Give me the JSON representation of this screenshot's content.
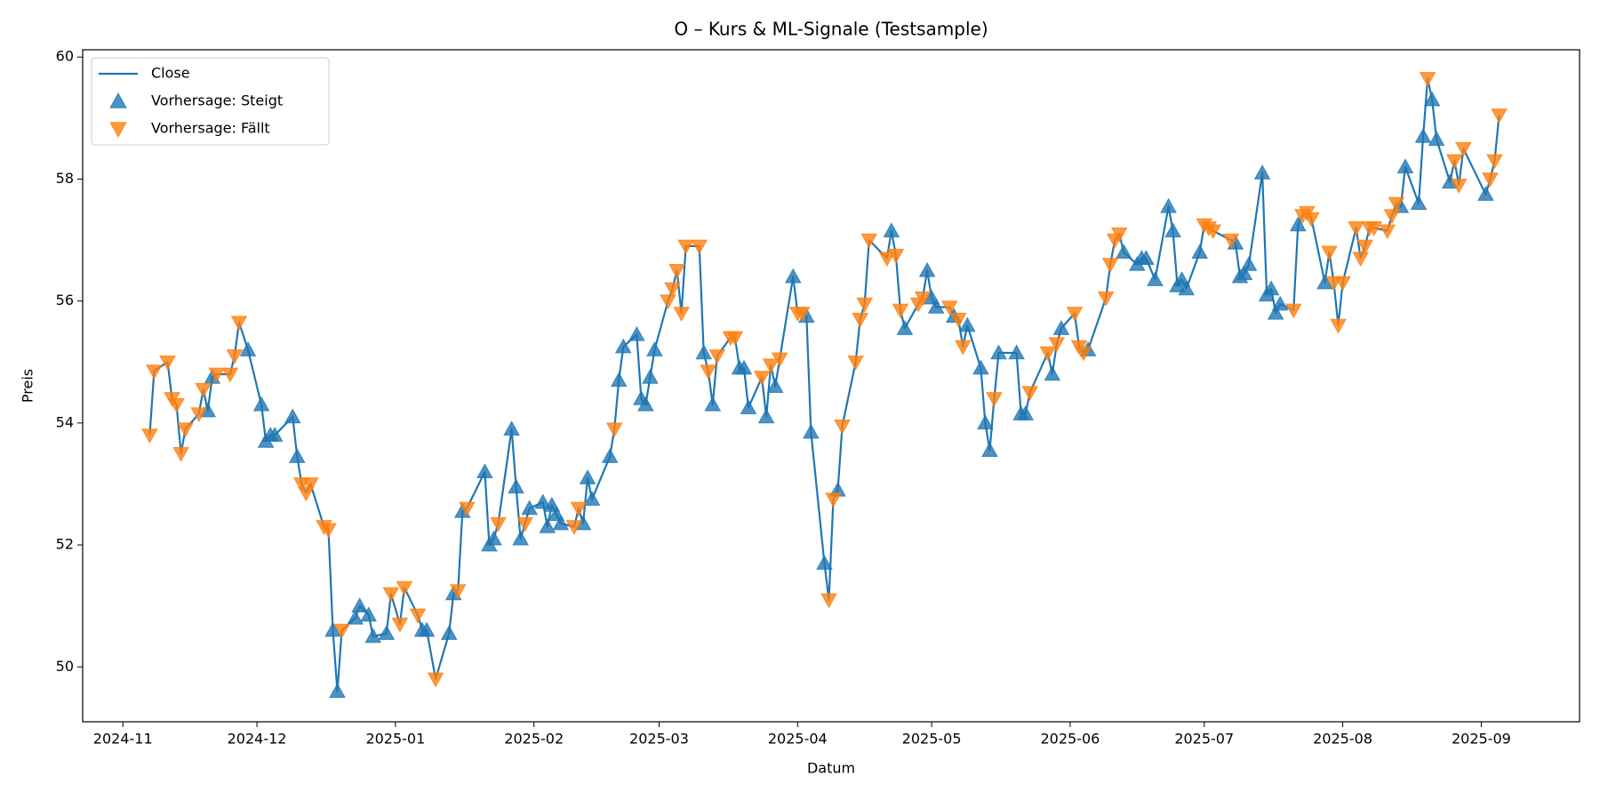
{
  "chart_data": {
    "type": "line",
    "title": "O – Kurs & ML-Signale (Testsample)",
    "x_label": "Datum",
    "y_label": "Preis",
    "legend": "upper left",
    "xlim": [
      "2024-10-23",
      "2025-09-23"
    ],
    "xticks": [
      {
        "value": "2024-11-01",
        "label": "2024-11"
      },
      {
        "value": "2024-12-01",
        "label": "2024-12"
      },
      {
        "value": "2025-01-01",
        "label": "2025-01"
      },
      {
        "value": "2025-02-01",
        "label": "2025-02"
      },
      {
        "value": "2025-03-01",
        "label": "2025-03"
      },
      {
        "value": "2025-04-01",
        "label": "2025-04"
      },
      {
        "value": "2025-05-01",
        "label": "2025-05"
      },
      {
        "value": "2025-06-01",
        "label": "2025-06"
      },
      {
        "value": "2025-07-01",
        "label": "2025-07"
      },
      {
        "value": "2025-08-01",
        "label": "2025-08"
      },
      {
        "value": "2025-09-01",
        "label": "2025-09"
      }
    ],
    "ylim": [
      49.1,
      60.12
    ],
    "yticks": [
      50,
      52,
      54,
      56,
      58,
      60
    ],
    "x": [
      "2024-11-07",
      "2024-11-08",
      "2024-11-11",
      "2024-11-12",
      "2024-11-13",
      "2024-11-14",
      "2024-11-15",
      "2024-11-18",
      "2024-11-19",
      "2024-11-20",
      "2024-11-21",
      "2024-11-22",
      "2024-11-25",
      "2024-11-26",
      "2024-11-27",
      "2024-11-29",
      "2024-12-02",
      "2024-12-03",
      "2024-12-04",
      "2024-12-05",
      "2024-12-09",
      "2024-12-10",
      "2024-12-11",
      "2024-12-12",
      "2024-12-13",
      "2024-12-16",
      "2024-12-17",
      "2024-12-18",
      "2024-12-19",
      "2024-12-20",
      "2024-12-23",
      "2024-12-24",
      "2024-12-26",
      "2024-12-27",
      "2024-12-30",
      "2024-12-31",
      "2025-01-02",
      "2025-01-03",
      "2025-01-06",
      "2025-01-07",
      "2025-01-08",
      "2025-01-10",
      "2025-01-13",
      "2025-01-14",
      "2025-01-15",
      "2025-01-16",
      "2025-01-17",
      "2025-01-21",
      "2025-01-22",
      "2025-01-23",
      "2025-01-24",
      "2025-01-27",
      "2025-01-28",
      "2025-01-29",
      "2025-01-30",
      "2025-01-31",
      "2025-02-03",
      "2025-02-04",
      "2025-02-05",
      "2025-02-06",
      "2025-02-07",
      "2025-02-10",
      "2025-02-11",
      "2025-02-12",
      "2025-02-13",
      "2025-02-14",
      "2025-02-18",
      "2025-02-19",
      "2025-02-20",
      "2025-02-21",
      "2025-02-24",
      "2025-02-25",
      "2025-02-26",
      "2025-02-27",
      "2025-02-28",
      "2025-03-03",
      "2025-03-04",
      "2025-03-05",
      "2025-03-06",
      "2025-03-07",
      "2025-03-10",
      "2025-03-11",
      "2025-03-12",
      "2025-03-13",
      "2025-03-14",
      "2025-03-17",
      "2025-03-18",
      "2025-03-19",
      "2025-03-20",
      "2025-03-21",
      "2025-03-24",
      "2025-03-25",
      "2025-03-26",
      "2025-03-27",
      "2025-03-28",
      "2025-03-31",
      "2025-04-01",
      "2025-04-02",
      "2025-04-03",
      "2025-04-04",
      "2025-04-07",
      "2025-04-08",
      "2025-04-09",
      "2025-04-10",
      "2025-04-11",
      "2025-04-14",
      "2025-04-15",
      "2025-04-16",
      "2025-04-17",
      "2025-04-21",
      "2025-04-22",
      "2025-04-23",
      "2025-04-24",
      "2025-04-25",
      "2025-04-28",
      "2025-04-29",
      "2025-04-30",
      "2025-05-01",
      "2025-05-02",
      "2025-05-05",
      "2025-05-06",
      "2025-05-07",
      "2025-05-08",
      "2025-05-09",
      "2025-05-12",
      "2025-05-13",
      "2025-05-14",
      "2025-05-15",
      "2025-05-16",
      "2025-05-20",
      "2025-05-21",
      "2025-05-22",
      "2025-05-23",
      "2025-05-27",
      "2025-05-28",
      "2025-05-29",
      "2025-05-30",
      "2025-06-02",
      "2025-06-03",
      "2025-06-04",
      "2025-06-05",
      "2025-06-09",
      "2025-06-10",
      "2025-06-11",
      "2025-06-12",
      "2025-06-13",
      "2025-06-16",
      "2025-06-17",
      "2025-06-18",
      "2025-06-20",
      "2025-06-23",
      "2025-06-24",
      "2025-06-25",
      "2025-06-26",
      "2025-06-27",
      "2025-06-30",
      "2025-07-01",
      "2025-07-02",
      "2025-07-03",
      "2025-07-07",
      "2025-07-08",
      "2025-07-09",
      "2025-07-10",
      "2025-07-11",
      "2025-07-14",
      "2025-07-15",
      "2025-07-16",
      "2025-07-17",
      "2025-07-18",
      "2025-07-21",
      "2025-07-22",
      "2025-07-23",
      "2025-07-24",
      "2025-07-25",
      "2025-07-28",
      "2025-07-29",
      "2025-07-30",
      "2025-07-31",
      "2025-08-01",
      "2025-08-04",
      "2025-08-05",
      "2025-08-06",
      "2025-08-07",
      "2025-08-08",
      "2025-08-11",
      "2025-08-12",
      "2025-08-13",
      "2025-08-14",
      "2025-08-15",
      "2025-08-18",
      "2025-08-19",
      "2025-08-20",
      "2025-08-21",
      "2025-08-22",
      "2025-08-25",
      "2025-08-26",
      "2025-08-27",
      "2025-08-28",
      "2025-09-02",
      "2025-09-03",
      "2025-09-04",
      "2025-09-05"
    ],
    "series": [
      {
        "name": "Close",
        "color": "#1f77b4",
        "marker": "none",
        "values": [
          53.8,
          54.85,
          55.0,
          54.4,
          54.3,
          53.5,
          53.9,
          54.15,
          54.55,
          54.2,
          54.75,
          54.8,
          54.8,
          55.1,
          55.65,
          55.2,
          54.3,
          53.7,
          53.8,
          53.8,
          54.1,
          53.45,
          53.0,
          52.85,
          53.0,
          52.3,
          52.25,
          50.6,
          49.6,
          50.6,
          50.8,
          51.0,
          50.85,
          50.5,
          50.55,
          51.2,
          50.7,
          51.3,
          50.85,
          50.6,
          50.6,
          49.8,
          50.55,
          51.2,
          51.25,
          52.55,
          52.6,
          53.2,
          52.0,
          52.1,
          52.35,
          53.9,
          52.95,
          52.1,
          52.35,
          52.6,
          52.7,
          52.3,
          52.65,
          52.5,
          52.35,
          52.3,
          52.6,
          52.35,
          53.1,
          52.75,
          53.45,
          53.9,
          54.7,
          55.25,
          55.45,
          54.4,
          54.3,
          54.75,
          55.2,
          56.0,
          56.2,
          56.5,
          55.8,
          56.9,
          56.9,
          55.15,
          54.85,
          54.3,
          55.1,
          55.4,
          55.4,
          54.9,
          54.9,
          54.25,
          54.75,
          54.1,
          54.95,
          54.6,
          55.05,
          56.4,
          55.8,
          55.8,
          55.75,
          53.85,
          51.7,
          51.1,
          52.75,
          52.9,
          53.95,
          55.0,
          55.7,
          55.95,
          57.0,
          56.7,
          57.15,
          56.75,
          55.85,
          55.55,
          55.95,
          56.05,
          56.5,
          56.05,
          55.9,
          55.9,
          55.75,
          55.7,
          55.25,
          55.6,
          54.9,
          54.0,
          53.55,
          54.4,
          55.15,
          55.15,
          54.15,
          54.15,
          54.5,
          55.15,
          54.8,
          55.3,
          55.55,
          55.8,
          55.25,
          55.15,
          55.2,
          56.05,
          56.6,
          57.0,
          57.1,
          56.8,
          56.6,
          56.7,
          56.7,
          56.35,
          57.55,
          57.15,
          56.25,
          56.35,
          56.2,
          56.8,
          57.25,
          57.2,
          57.15,
          57.0,
          56.95,
          56.4,
          56.45,
          56.6,
          58.1,
          56.1,
          56.2,
          55.8,
          55.95,
          55.85,
          57.25,
          57.4,
          57.45,
          57.35,
          56.3,
          56.8,
          56.3,
          55.6,
          56.3,
          57.2,
          56.7,
          56.9,
          57.2,
          57.2,
          57.15,
          57.4,
          57.6,
          57.55,
          58.2,
          57.6,
          58.7,
          59.65,
          59.3,
          58.65,
          57.95,
          58.3,
          57.9,
          58.5,
          57.75,
          58.0,
          58.3,
          59.05
        ]
      },
      {
        "name": "Vorhersage: Steigt",
        "color": "#1f77b4",
        "marker": "triangle-up",
        "values": [
          null,
          null,
          null,
          null,
          null,
          null,
          null,
          null,
          null,
          54.2,
          54.75,
          null,
          null,
          null,
          null,
          55.2,
          54.3,
          53.7,
          53.8,
          53.8,
          54.1,
          53.45,
          null,
          null,
          null,
          null,
          null,
          50.6,
          49.6,
          null,
          50.8,
          51.0,
          50.85,
          50.5,
          50.55,
          null,
          null,
          null,
          null,
          50.6,
          50.6,
          null,
          50.55,
          51.2,
          null,
          52.55,
          null,
          53.2,
          52.0,
          52.1,
          null,
          53.9,
          52.95,
          52.1,
          null,
          52.6,
          52.7,
          52.3,
          52.65,
          52.5,
          52.35,
          null,
          null,
          52.35,
          53.1,
          52.75,
          53.45,
          null,
          54.7,
          55.25,
          55.45,
          54.4,
          54.3,
          54.75,
          55.2,
          null,
          null,
          null,
          null,
          null,
          null,
          55.15,
          null,
          54.3,
          null,
          null,
          null,
          54.9,
          54.9,
          54.25,
          null,
          54.1,
          null,
          54.6,
          null,
          56.4,
          null,
          null,
          55.75,
          53.85,
          51.7,
          null,
          null,
          52.9,
          null,
          null,
          null,
          null,
          null,
          null,
          57.15,
          null,
          null,
          55.55,
          null,
          null,
          56.5,
          56.05,
          55.9,
          null,
          55.75,
          null,
          null,
          55.6,
          54.9,
          54.0,
          53.55,
          null,
          55.15,
          55.15,
          54.15,
          54.15,
          null,
          null,
          54.8,
          null,
          55.55,
          null,
          null,
          null,
          55.2,
          null,
          null,
          null,
          null,
          56.8,
          56.6,
          56.7,
          56.7,
          56.35,
          57.55,
          57.15,
          56.25,
          56.35,
          56.2,
          56.8,
          null,
          null,
          null,
          null,
          56.95,
          56.4,
          56.45,
          56.6,
          58.1,
          56.1,
          56.2,
          55.8,
          55.95,
          null,
          57.25,
          null,
          null,
          null,
          56.3,
          null,
          null,
          null,
          null,
          null,
          null,
          null,
          null,
          null,
          null,
          null,
          null,
          57.55,
          58.2,
          57.6,
          58.7,
          null,
          59.3,
          58.65,
          57.95,
          null,
          null,
          null,
          57.75,
          null,
          null,
          null
        ]
      },
      {
        "name": "Vorhersage: Fällt",
        "color": "#ff7f0e",
        "marker": "triangle-down",
        "values": [
          53.8,
          54.85,
          55.0,
          54.4,
          54.3,
          53.5,
          53.9,
          54.15,
          54.55,
          null,
          null,
          54.8,
          54.8,
          55.1,
          55.65,
          null,
          null,
          null,
          null,
          null,
          null,
          null,
          53.0,
          52.85,
          53.0,
          52.3,
          52.25,
          null,
          null,
          50.6,
          null,
          null,
          null,
          null,
          null,
          51.2,
          50.7,
          51.3,
          50.85,
          null,
          null,
          49.8,
          null,
          null,
          51.25,
          null,
          52.6,
          null,
          null,
          null,
          52.35,
          null,
          null,
          null,
          52.35,
          null,
          null,
          null,
          null,
          null,
          null,
          52.3,
          52.6,
          null,
          null,
          null,
          null,
          53.9,
          null,
          null,
          null,
          null,
          null,
          null,
          null,
          56.0,
          56.2,
          56.5,
          55.8,
          56.9,
          56.9,
          null,
          54.85,
          null,
          55.1,
          55.4,
          55.4,
          null,
          null,
          null,
          54.75,
          null,
          54.95,
          null,
          55.05,
          null,
          55.8,
          55.8,
          null,
          null,
          null,
          51.1,
          52.75,
          null,
          53.95,
          55.0,
          55.7,
          55.95,
          57.0,
          56.7,
          null,
          56.75,
          55.85,
          null,
          55.95,
          56.05,
          null,
          null,
          null,
          55.9,
          null,
          55.7,
          55.25,
          null,
          null,
          null,
          null,
          54.4,
          null,
          null,
          null,
          null,
          54.5,
          55.15,
          null,
          55.3,
          null,
          55.8,
          55.25,
          55.15,
          null,
          56.05,
          56.6,
          57.0,
          57.1,
          null,
          null,
          null,
          null,
          null,
          null,
          null,
          null,
          null,
          null,
          null,
          57.25,
          57.2,
          57.15,
          57.0,
          null,
          null,
          null,
          null,
          null,
          null,
          null,
          null,
          null,
          55.85,
          null,
          57.4,
          57.45,
          57.35,
          null,
          56.8,
          56.3,
          55.6,
          56.3,
          57.2,
          56.7,
          56.9,
          57.2,
          57.2,
          57.15,
          57.4,
          57.6,
          null,
          null,
          null,
          null,
          59.65,
          null,
          null,
          null,
          58.3,
          57.9,
          58.5,
          null,
          58.0,
          58.3,
          59.05
        ]
      }
    ]
  }
}
